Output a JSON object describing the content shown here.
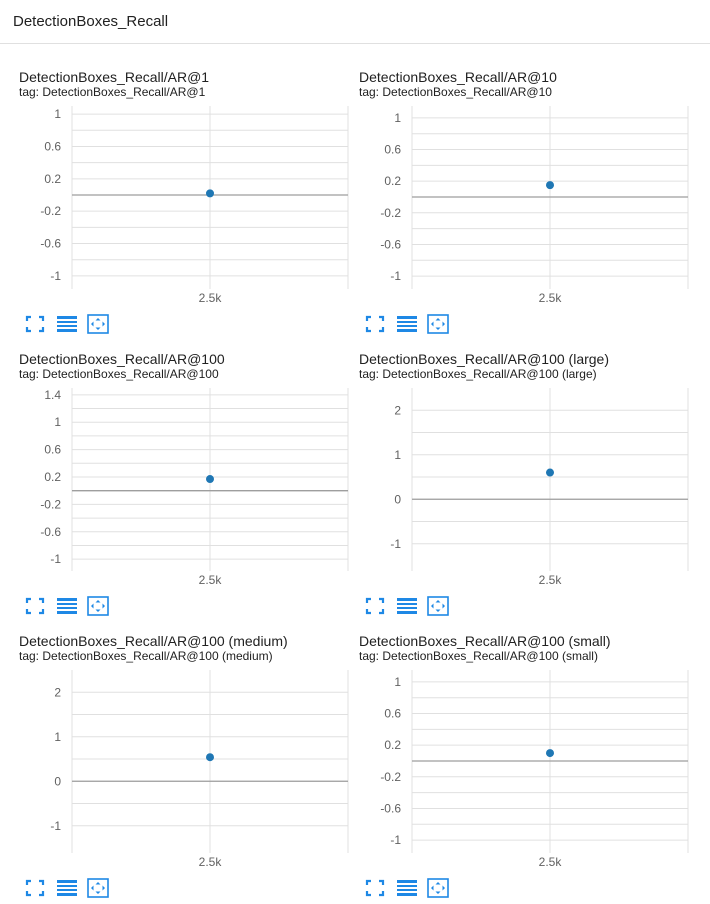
{
  "header": {
    "title": "DetectionBoxes_Recall"
  },
  "colors": {
    "point": "#1f77b4",
    "grid": "#e0e0e0",
    "zero_line": "#9e9e9e",
    "axis_text": "#616161",
    "tool_icon": "#1e88e5"
  },
  "tools": {
    "fullscreen": "fullscreen-icon",
    "data_table": "data-table-icon",
    "fit_domain": "fit-domain-icon"
  },
  "cards": [
    {
      "title": "DetectionBoxes_Recall/AR@1",
      "tag": "tag: DetectionBoxes_Recall/AR@1"
    },
    {
      "title": "DetectionBoxes_Recall/AR@10",
      "tag": "tag: DetectionBoxes_Recall/AR@10"
    },
    {
      "title": "DetectionBoxes_Recall/AR@100",
      "tag": "tag: DetectionBoxes_Recall/AR@100"
    },
    {
      "title": "DetectionBoxes_Recall/AR@100 (large)",
      "tag": "tag: DetectionBoxes_Recall/AR@100 (large)"
    },
    {
      "title": "DetectionBoxes_Recall/AR@100 (medium)",
      "tag": "tag: DetectionBoxes_Recall/AR@100 (medium)"
    },
    {
      "title": "DetectionBoxes_Recall/AR@100 (small)",
      "tag": "tag: DetectionBoxes_Recall/AR@100 (small)"
    }
  ],
  "chart_data": [
    {
      "type": "scatter",
      "title": "DetectionBoxes_Recall/AR@1",
      "x": [
        2500
      ],
      "y": [
        0.02
      ],
      "x_tick_labels": [
        "2.5k"
      ],
      "y_ticks": [
        1,
        0.6,
        0.2,
        -0.2,
        -0.6,
        -1
      ],
      "y_tick_labels": [
        "1",
        "0.6",
        "0.2",
        "-0.2",
        "-0.6",
        "-1"
      ],
      "ylim": [
        -1.1,
        1.1
      ],
      "grid": true
    },
    {
      "type": "scatter",
      "title": "DetectionBoxes_Recall/AR@10",
      "x": [
        2500
      ],
      "y": [
        0.15
      ],
      "x_tick_labels": [
        "2.5k"
      ],
      "y_ticks": [
        1,
        0.6,
        0.2,
        -0.2,
        -0.6,
        -1
      ],
      "y_tick_labels": [
        "1",
        "0.6",
        "0.2",
        "-0.2",
        "-0.6",
        "-1"
      ],
      "ylim": [
        -1.1,
        1.15
      ],
      "grid": true
    },
    {
      "type": "scatter",
      "title": "DetectionBoxes_Recall/AR@100",
      "x": [
        2500
      ],
      "y": [
        0.17
      ],
      "x_tick_labels": [
        "2.5k"
      ],
      "y_ticks": [
        1.4,
        1,
        0.6,
        0.2,
        -0.2,
        -0.6,
        -1
      ],
      "y_tick_labels": [
        "1.4",
        "1",
        "0.6",
        "0.2",
        "-0.2",
        "-0.6",
        "-1"
      ],
      "ylim": [
        -1.1,
        1.5
      ],
      "grid": true
    },
    {
      "type": "scatter",
      "title": "DetectionBoxes_Recall/AR@100 (large)",
      "x": [
        2500
      ],
      "y": [
        0.6
      ],
      "x_tick_labels": [
        "2.5k"
      ],
      "y_ticks": [
        2,
        1,
        0,
        -1
      ],
      "y_tick_labels": [
        "2",
        "1",
        "0",
        "-1"
      ],
      "ylim": [
        -1.5,
        2.5
      ],
      "grid": true
    },
    {
      "type": "scatter",
      "title": "DetectionBoxes_Recall/AR@100 (medium)",
      "x": [
        2500
      ],
      "y": [
        0.54
      ],
      "x_tick_labels": [
        "2.5k"
      ],
      "y_ticks": [
        2,
        1,
        0,
        -1
      ],
      "y_tick_labels": [
        "2",
        "1",
        "0",
        "-1"
      ],
      "ylim": [
        -1.5,
        2.5
      ],
      "grid": true
    },
    {
      "type": "scatter",
      "title": "DetectionBoxes_Recall/AR@100 (small)",
      "x": [
        2500
      ],
      "y": [
        0.1
      ],
      "x_tick_labels": [
        "2.5k"
      ],
      "y_ticks": [
        1,
        0.6,
        0.2,
        -0.2,
        -0.6,
        -1
      ],
      "y_tick_labels": [
        "1",
        "0.6",
        "0.2",
        "-0.2",
        "-0.6",
        "-1"
      ],
      "ylim": [
        -1.1,
        1.15
      ],
      "grid": true
    }
  ]
}
